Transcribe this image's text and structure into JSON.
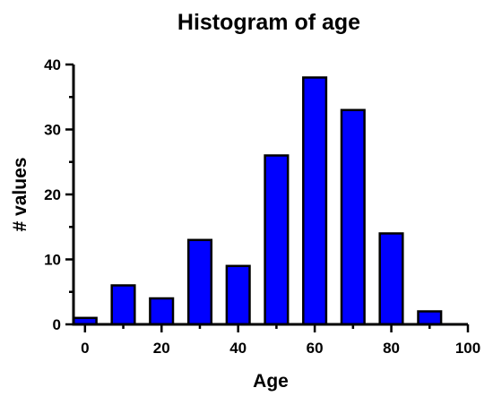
{
  "chart_data": {
    "type": "bar",
    "title": "Histogram of age",
    "xlabel": "Age",
    "ylabel": "# values",
    "bar_color": "#0000ff",
    "edge_color": "#000000",
    "bin_width": 10,
    "bin_centers": [
      0,
      10,
      20,
      30,
      40,
      50,
      60,
      70,
      80,
      90
    ],
    "values": [
      1,
      6,
      4,
      13,
      9,
      26,
      38,
      33,
      14,
      2
    ],
    "xlim": [
      -3,
      100
    ],
    "ylim": [
      0,
      40
    ],
    "x_ticks": [
      "0",
      "20",
      "40",
      "60",
      "80",
      "100"
    ],
    "y_ticks": [
      "0",
      "10",
      "20",
      "30",
      "40"
    ],
    "grid": false,
    "legend": "none"
  }
}
